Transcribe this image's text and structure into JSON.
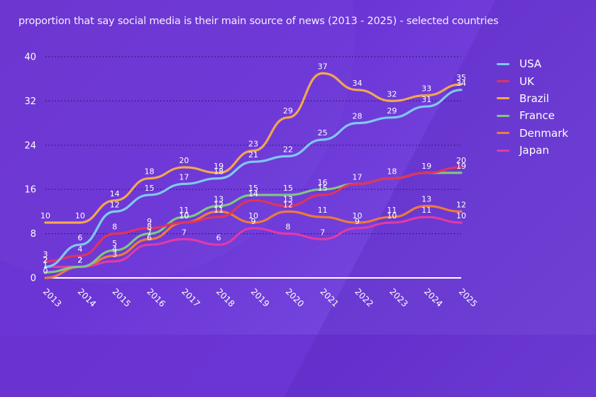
{
  "chart_data": {
    "type": "line",
    "title": "proportion that say social media is their main source of news (2013 - 2025) - selected countries",
    "xlabel": "",
    "ylabel": "",
    "ylim": [
      0,
      40
    ],
    "yticks": [
      "0",
      "8",
      "16",
      "24",
      "32",
      "40"
    ],
    "grid": true,
    "legend_position": "right",
    "x": [
      "2013",
      "2014",
      "2015",
      "2016",
      "2017",
      "2018",
      "2019",
      "2020",
      "2021",
      "2022",
      "2023",
      "2024",
      "2025"
    ],
    "series": [
      {
        "name": "USA",
        "color": "#7fc8f0",
        "values": [
          2,
          6,
          12,
          15,
          17,
          18,
          21,
          22,
          25,
          28,
          29,
          31,
          34
        ]
      },
      {
        "name": "UK",
        "color": "#e0345c",
        "values": [
          3,
          4,
          8,
          9,
          10,
          11,
          14,
          13,
          15,
          17,
          18,
          19,
          20
        ]
      },
      {
        "name": "Brazil",
        "color": "#f2a74e",
        "values": [
          10,
          10,
          14,
          18,
          20,
          19,
          23,
          29,
          37,
          34,
          32,
          33,
          35
        ]
      },
      {
        "name": "France",
        "color": "#7fc882",
        "values": [
          1,
          2,
          5,
          8,
          11,
          13,
          15,
          15,
          16,
          17,
          18,
          19,
          19
        ]
      },
      {
        "name": "Denmark",
        "color": "#ee7a3c",
        "values": [
          0,
          2,
          4,
          7,
          10,
          12,
          10,
          12,
          11,
          10,
          11,
          13,
          12
        ]
      },
      {
        "name": "Japan",
        "color": "#e03aa8",
        "values": [
          2,
          2,
          3,
          6,
          7,
          6,
          9,
          8,
          7,
          9,
          10,
          11,
          10
        ]
      }
    ],
    "labels_hidden": {
      "France": [
        "2022",
        "2023",
        "2024"
      ]
    }
  },
  "legend": [
    "USA",
    "UK",
    "Brazil",
    "France",
    "Denmark",
    "Japan"
  ]
}
